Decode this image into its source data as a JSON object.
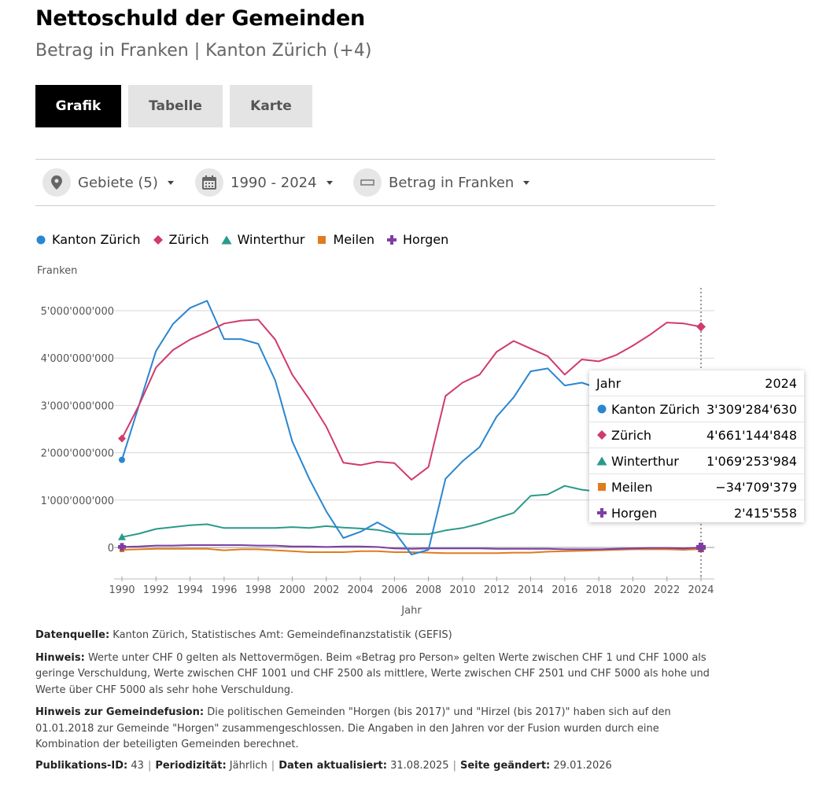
{
  "header": {
    "title": "Nettoschuld der Gemeinden",
    "subtitle": "Betrag in Franken | Kanton Zürich (+4)"
  },
  "tabs": [
    {
      "label": "Grafik",
      "active": true
    },
    {
      "label": "Tabelle",
      "active": false
    },
    {
      "label": "Karte",
      "active": false
    }
  ],
  "filters": {
    "regions": {
      "label": "Gebiete (5)",
      "icon": "location-pin-icon"
    },
    "period": {
      "label": "1990 - 2024",
      "icon": "calendar-icon"
    },
    "measure": {
      "label": "Betrag in Franken",
      "icon": "ruler-icon"
    }
  },
  "chart_data": {
    "type": "line",
    "title": "Nettoschuld der Gemeinden",
    "ylabel": "Franken",
    "xlabel": "Jahr",
    "xlim": [
      1990,
      2024
    ],
    "ylim": [
      -600000000,
      5500000000
    ],
    "grid": true,
    "legend_position": "top-left",
    "x_ticks": [
      1990,
      1992,
      1994,
      1996,
      1998,
      2000,
      2002,
      2004,
      2006,
      2008,
      2010,
      2012,
      2014,
      2016,
      2018,
      2020,
      2022,
      2024
    ],
    "y_ticks": [
      0,
      1000000000,
      2000000000,
      3000000000,
      4000000000,
      5000000000
    ],
    "y_tick_labels": [
      "0",
      "1'000'000'000",
      "2'000'000'000",
      "3'000'000'000",
      "4'000'000'000",
      "5'000'000'000"
    ],
    "x": [
      1990,
      1991,
      1992,
      1993,
      1994,
      1995,
      1996,
      1997,
      1998,
      1999,
      2000,
      2001,
      2002,
      2003,
      2004,
      2005,
      2006,
      2007,
      2008,
      2009,
      2010,
      2011,
      2012,
      2013,
      2014,
      2015,
      2016,
      2017,
      2018,
      2019,
      2020,
      2021,
      2022,
      2023,
      2024
    ],
    "series": [
      {
        "name": "Kanton Zürich",
        "color": "#2a86d1",
        "marker": "circle",
        "values": [
          1850000000,
          3000000000,
          4150000000,
          4720000000,
          5060000000,
          5210000000,
          4400000000,
          4400000000,
          4300000000,
          3530000000,
          2240000000,
          1450000000,
          760000000,
          200000000,
          330000000,
          530000000,
          330000000,
          -150000000,
          -50000000,
          1450000000,
          1820000000,
          2120000000,
          2760000000,
          3170000000,
          3720000000,
          3780000000,
          3420000000,
          3480000000,
          3360000000,
          3380000000,
          3350000000,
          3330000000,
          3320000000,
          3310000000,
          3309284630
        ]
      },
      {
        "name": "Zürich",
        "color": "#d13a6c",
        "marker": "diamond",
        "values": [
          2300000000,
          3000000000,
          3800000000,
          4170000000,
          4390000000,
          4550000000,
          4730000000,
          4790000000,
          4810000000,
          4390000000,
          3650000000,
          3130000000,
          2550000000,
          1790000000,
          1740000000,
          1810000000,
          1780000000,
          1430000000,
          1700000000,
          3200000000,
          3480000000,
          3650000000,
          4130000000,
          4360000000,
          4200000000,
          4040000000,
          3650000000,
          3970000000,
          3930000000,
          4060000000,
          4260000000,
          4490000000,
          4750000000,
          4730000000,
          4661144848
        ]
      },
      {
        "name": "Winterthur",
        "color": "#2a9a8b",
        "marker": "triangle",
        "values": [
          220000000,
          290000000,
          390000000,
          430000000,
          470000000,
          490000000,
          410000000,
          410000000,
          410000000,
          410000000,
          430000000,
          410000000,
          450000000,
          420000000,
          400000000,
          370000000,
          300000000,
          280000000,
          280000000,
          360000000,
          410000000,
          500000000,
          620000000,
          730000000,
          1090000000,
          1120000000,
          1300000000,
          1220000000,
          1180000000,
          1150000000,
          1120000000,
          1100000000,
          1090000000,
          1080000000,
          1069253984
        ]
      },
      {
        "name": "Meilen",
        "color": "#e07b1f",
        "marker": "square",
        "values": [
          -50000000,
          -40000000,
          -30000000,
          -30000000,
          -30000000,
          -30000000,
          -60000000,
          -40000000,
          -40000000,
          -60000000,
          -80000000,
          -100000000,
          -100000000,
          -100000000,
          -80000000,
          -80000000,
          -100000000,
          -100000000,
          -110000000,
          -120000000,
          -120000000,
          -120000000,
          -120000000,
          -110000000,
          -110000000,
          -90000000,
          -80000000,
          -70000000,
          -60000000,
          -50000000,
          -40000000,
          -40000000,
          -40000000,
          -50000000,
          -34709379
        ]
      },
      {
        "name": "Horgen",
        "color": "#7d3ea3",
        "marker": "plus",
        "values": [
          10000000,
          20000000,
          40000000,
          40000000,
          50000000,
          50000000,
          50000000,
          50000000,
          40000000,
          40000000,
          20000000,
          20000000,
          10000000,
          20000000,
          20000000,
          10000000,
          -20000000,
          -30000000,
          -20000000,
          -20000000,
          -20000000,
          -20000000,
          -30000000,
          -30000000,
          -30000000,
          -30000000,
          -40000000,
          -40000000,
          -40000000,
          -30000000,
          -20000000,
          -10000000,
          -10000000,
          -20000000,
          2415558
        ]
      }
    ]
  },
  "tooltip": {
    "year_label": "Jahr",
    "year_value": "2024",
    "rows": [
      {
        "name": "Kanton Zürich",
        "value": "3'309'284'630",
        "color": "#2a86d1",
        "marker": "circle"
      },
      {
        "name": "Zürich",
        "value": "4'661'144'848",
        "color": "#d13a6c",
        "marker": "diamond"
      },
      {
        "name": "Winterthur",
        "value": "1'069'253'984",
        "color": "#2a9a8b",
        "marker": "triangle"
      },
      {
        "name": "Meilen",
        "value": "−34'709'379",
        "color": "#e07b1f",
        "marker": "square"
      },
      {
        "name": "Horgen",
        "value": "2'415'558",
        "color": "#7d3ea3",
        "marker": "plus"
      }
    ]
  },
  "notes": {
    "source_label": "Datenquelle:",
    "source_text": "Kanton Zürich, Statistisches Amt: Gemeindefinanzstatistik (GEFIS)",
    "hint_label": "Hinweis:",
    "hint_text": "Werte unter CHF 0 gelten als Nettovermögen. Beim «Betrag pro Person» gelten Werte zwischen CHF 1 und CHF 1000 als geringe Verschuldung, Werte zwischen CHF 1001 und CHF 2500 als mittlere, Werte zwischen CHF 2501 und CHF 5000 als hohe und Werte über CHF 5000 als sehr hohe Verschuldung.",
    "fusion_label": "Hinweis zur Gemeindefusion:",
    "fusion_text": "Die politischen Gemeinden \"Horgen (bis 2017)\" und \"Hirzel (bis 2017)\" haben sich auf den 01.01.2018 zur Gemeinde \"Horgen\" zusammengeschlossen. Die Angaben in den Jahren vor der Fusion wurden durch eine Kombination der beteiligten Gemeinden berechnet."
  },
  "meta": {
    "pub_label": "Publikations-ID:",
    "pub_value": "43",
    "period_label": "Periodizität:",
    "period_value": "Jährlich",
    "updated_label": "Daten aktualisiert:",
    "updated_value": "31.08.2025",
    "changed_label": "Seite geändert:",
    "changed_value": "29.01.2026"
  }
}
